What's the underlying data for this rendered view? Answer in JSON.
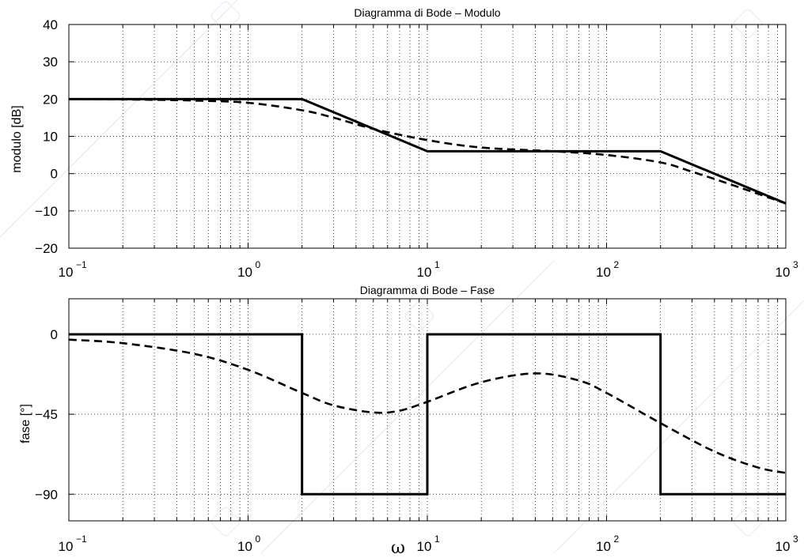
{
  "chart_data": [
    {
      "type": "line",
      "title": "Diagramma di Bode – Modulo",
      "xlabel": "",
      "ylabel": "modulo [dB]",
      "x_scale": "log",
      "xlim": [
        0.1,
        1000
      ],
      "ylim": [
        -20,
        40
      ],
      "yticks": [
        -20,
        -10,
        0,
        10,
        20,
        30,
        40
      ],
      "ytick_labels": [
        "−20",
        "−10",
        "0",
        "10",
        "20",
        "30",
        "40"
      ],
      "xtick_labels": [
        {
          "base": "10",
          "exp": "−1"
        },
        {
          "base": "10",
          "exp": "0"
        },
        {
          "base": "10",
          "exp": "1"
        },
        {
          "base": "10",
          "exp": "2"
        },
        {
          "base": "10",
          "exp": "3"
        }
      ],
      "grid": true,
      "series": [
        {
          "style": "solid",
          "x": [
            0.1,
            2,
            10,
            200,
            1000
          ],
          "y": [
            20,
            20,
            6,
            6,
            -8
          ]
        },
        {
          "style": "dashed",
          "x": [
            0.1,
            0.2,
            0.5,
            1,
            2,
            3,
            5,
            10,
            20,
            50,
            100,
            200,
            300,
            500,
            1000
          ],
          "y": [
            20,
            19.9,
            19.6,
            19,
            17,
            15,
            12,
            9,
            7,
            6,
            5,
            3,
            0.5,
            -3,
            -8
          ]
        }
      ]
    },
    {
      "type": "line",
      "title": "Diagramma di Bode – Fase",
      "xlabel": "ω",
      "ylabel": "fase [°]",
      "x_scale": "log",
      "xlim": [
        0.1,
        1000
      ],
      "ylim": [
        -105,
        20
      ],
      "yticks": [
        0,
        -45,
        -90
      ],
      "ytick_labels": [
        "0",
        "−45",
        "−90"
      ],
      "xtick_labels": [
        {
          "base": "10",
          "exp": "−1"
        },
        {
          "base": "10",
          "exp": "0"
        },
        {
          "base": "10",
          "exp": "1"
        },
        {
          "base": "10",
          "exp": "2"
        },
        {
          "base": "10",
          "exp": "3"
        }
      ],
      "grid": true,
      "series": [
        {
          "style": "solid",
          "x": [
            0.1,
            2,
            2,
            10,
            10,
            200,
            200,
            1000
          ],
          "y": [
            0,
            0,
            -90,
            -90,
            0,
            0,
            -90,
            -90
          ]
        },
        {
          "style": "dashed",
          "x": [
            0.1,
            0.2,
            0.5,
            1,
            2,
            3,
            5,
            7,
            10,
            20,
            40,
            70,
            100,
            200,
            400,
            700,
            1000
          ],
          "y": [
            -3,
            -5,
            -11,
            -20,
            -33,
            -40,
            -44,
            -43,
            -38,
            -27,
            -22,
            -26,
            -33,
            -50,
            -66,
            -75,
            -78
          ]
        }
      ]
    }
  ]
}
